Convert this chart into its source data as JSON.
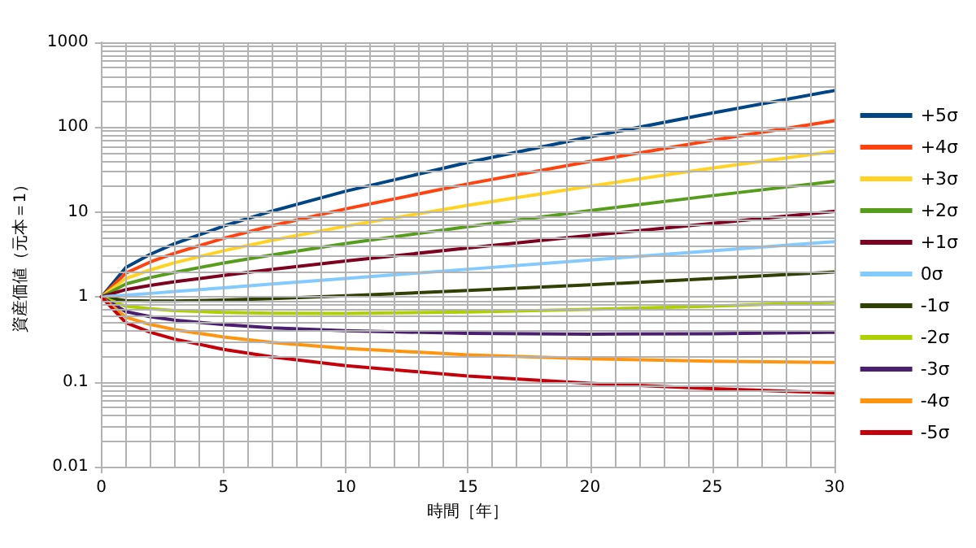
{
  "chart_data": {
    "type": "line",
    "xlabel": "時間［年］",
    "ylabel": "資産価値（元本＝1）",
    "log": "y",
    "grid": true,
    "legend": "right",
    "marker": "none",
    "line_style": "solid",
    "x": [
      0,
      1,
      2,
      3,
      5,
      7,
      10,
      15,
      20,
      25,
      30
    ],
    "xlim": [
      0,
      30
    ],
    "xticks": [
      0,
      {
        "value": 1,
        "label": null
      },
      {
        "value": 2,
        "label": null
      },
      {
        "value": 3,
        "label": null
      },
      {
        "value": 4,
        "label": null
      },
      5,
      {
        "value": 6,
        "label": null
      },
      {
        "value": 7,
        "label": null
      },
      {
        "value": 8,
        "label": null
      },
      {
        "value": 9,
        "label": null
      },
      10,
      {
        "value": 11,
        "label": null
      },
      {
        "value": 12,
        "label": null
      },
      {
        "value": 13,
        "label": null
      },
      {
        "value": 14,
        "label": null
      },
      15,
      {
        "value": 16,
        "label": null
      },
      {
        "value": 17,
        "label": null
      },
      {
        "value": 18,
        "label": null
      },
      {
        "value": 19,
        "label": null
      },
      20,
      {
        "value": 21,
        "label": null
      },
      {
        "value": 22,
        "label": null
      },
      {
        "value": 23,
        "label": null
      },
      {
        "value": 24,
        "label": null
      },
      25,
      {
        "value": 26,
        "label": null
      },
      {
        "value": 27,
        "label": null
      },
      {
        "value": 28,
        "label": null
      },
      {
        "value": 29,
        "label": null
      },
      30
    ],
    "ylim": [
      0.01,
      1000
    ],
    "yticks": [
      0.01,
      {
        "value": 0.02,
        "label": null
      },
      {
        "value": 0.03,
        "label": null
      },
      {
        "value": 0.04,
        "label": null
      },
      {
        "value": 0.05,
        "label": null
      },
      {
        "value": 0.06,
        "label": null
      },
      {
        "value": 0.07,
        "label": null
      },
      {
        "value": 0.08,
        "label": null
      },
      {
        "value": 0.09,
        "label": null
      },
      0.1,
      {
        "value": 0.2,
        "label": null
      },
      {
        "value": 0.3,
        "label": null
      },
      {
        "value": 0.4,
        "label": null
      },
      {
        "value": 0.5,
        "label": null
      },
      {
        "value": 0.6,
        "label": null
      },
      {
        "value": 0.7,
        "label": null
      },
      {
        "value": 0.8,
        "label": null
      },
      {
        "value": 0.9,
        "label": null
      },
      1,
      {
        "value": 2,
        "label": null
      },
      {
        "value": 3,
        "label": null
      },
      {
        "value": 4,
        "label": null
      },
      {
        "value": 5,
        "label": null
      },
      {
        "value": 6,
        "label": null
      },
      {
        "value": 7,
        "label": null
      },
      {
        "value": 8,
        "label": null
      },
      {
        "value": 9,
        "label": null
      },
      10,
      {
        "value": 20,
        "label": null
      },
      {
        "value": 30,
        "label": null
      },
      {
        "value": 40,
        "label": null
      },
      {
        "value": 50,
        "label": null
      },
      {
        "value": 60,
        "label": null
      },
      {
        "value": 70,
        "label": null
      },
      {
        "value": 80,
        "label": null
      },
      {
        "value": 90,
        "label": null
      },
      100,
      {
        "value": 200,
        "label": null
      },
      {
        "value": 300,
        "label": null
      },
      {
        "value": 400,
        "label": null
      },
      {
        "value": 500,
        "label": null
      },
      {
        "value": 600,
        "label": null
      },
      {
        "value": 700,
        "label": null
      },
      {
        "value": 800,
        "label": null
      },
      {
        "value": 900,
        "label": null
      },
      1000
    ],
    "series": [
      {
        "name": "+5σ",
        "color": "#004586",
        "values": [
          1,
          2.22,
          3.18,
          4.25,
          6.84,
          10.3,
          17.6,
          38.4,
          77,
          147,
          270
        ]
      },
      {
        "name": "+4σ",
        "color": "#ff420e",
        "values": [
          1,
          1.91,
          2.58,
          3.28,
          4.9,
          6.92,
          10.9,
          21.5,
          39.5,
          70,
          119
        ]
      },
      {
        "name": "+3σ",
        "color": "#ffd320",
        "values": [
          1,
          1.65,
          2.08,
          2.53,
          3.5,
          4.66,
          6.82,
          12,
          20.2,
          33,
          52
        ]
      },
      {
        "name": "+2σ",
        "color": "#579d1c",
        "values": [
          1,
          1.42,
          1.69,
          1.95,
          2.51,
          3.13,
          4.25,
          6.74,
          10.4,
          15.6,
          23
        ]
      },
      {
        "name": "+1σ",
        "color": "#7e0021",
        "values": [
          1,
          1.22,
          1.37,
          1.51,
          1.79,
          2.11,
          2.65,
          3.78,
          5.31,
          7.37,
          10.2
        ]
      },
      {
        "name": "0σ",
        "color": "#83caff",
        "values": [
          1,
          1.05,
          1.1,
          1.16,
          1.28,
          1.42,
          1.65,
          2.12,
          2.72,
          3.49,
          4.48
        ]
      },
      {
        "name": "-1σ",
        "color": "#314004",
        "values": [
          1,
          0.905,
          0.894,
          0.897,
          0.919,
          0.955,
          1.03,
          1.19,
          1.39,
          1.65,
          1.97
        ]
      },
      {
        "name": "-2σ",
        "color": "#aecf00",
        "values": [
          1,
          0.779,
          0.724,
          0.692,
          0.658,
          0.643,
          0.64,
          0.664,
          0.712,
          0.781,
          0.869
        ]
      },
      {
        "name": "-3σ",
        "color": "#4b1f6f",
        "values": [
          1,
          0.671,
          0.586,
          0.534,
          0.471,
          0.433,
          0.399,
          0.372,
          0.365,
          0.369,
          0.383
        ]
      },
      {
        "name": "-4σ",
        "color": "#ff950e",
        "values": [
          1,
          0.578,
          0.474,
          0.412,
          0.337,
          0.291,
          0.248,
          0.208,
          0.187,
          0.175,
          0.169
        ]
      },
      {
        "name": "-5σ",
        "color": "#c5000b",
        "values": [
          1,
          0.497,
          0.384,
          0.318,
          0.241,
          0.196,
          0.155,
          0.117,
          0.096,
          0.083,
          0.074
        ]
      }
    ]
  }
}
